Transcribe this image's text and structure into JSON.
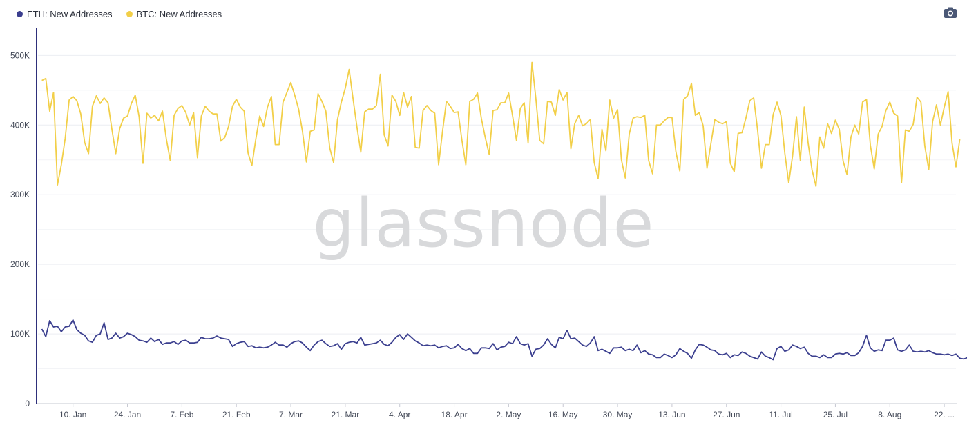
{
  "legend": [
    {
      "label": "ETH: New Addresses",
      "color": "#3b3f8f"
    },
    {
      "label": "BTC: New Addresses",
      "color": "#f2cf48"
    }
  ],
  "toolbar": {
    "camera_icon": "camera-icon"
  },
  "watermark": "glassnode",
  "chart_data": {
    "type": "line",
    "ylim": [
      0,
      540000
    ],
    "yticks": [
      0,
      100000,
      200000,
      300000,
      400000,
      500000
    ],
    "ytick_labels": [
      "0",
      "100K",
      "200K",
      "300K",
      "400K",
      "500K"
    ],
    "grid": true,
    "legend_position": "top-left",
    "xticks": [
      {
        "day": 8,
        "label": "10. Jan"
      },
      {
        "day": 22,
        "label": "24. Jan"
      },
      {
        "day": 36,
        "label": "7. Feb"
      },
      {
        "day": 50,
        "label": "21. Feb"
      },
      {
        "day": 64,
        "label": "7. Mar"
      },
      {
        "day": 78,
        "label": "21. Mar"
      },
      {
        "day": 92,
        "label": "4. Apr"
      },
      {
        "day": 106,
        "label": "18. Apr"
      },
      {
        "day": 120,
        "label": "2. May"
      },
      {
        "day": 134,
        "label": "16. May"
      },
      {
        "day": 148,
        "label": "30. May"
      },
      {
        "day": 162,
        "label": "13. Jun"
      },
      {
        "day": 176,
        "label": "27. Jun"
      },
      {
        "day": 190,
        "label": "11. Jul"
      },
      {
        "day": 204,
        "label": "25. Jul"
      },
      {
        "day": 218,
        "label": "8. Aug"
      },
      {
        "day": 232,
        "label": "22. ..."
      }
    ],
    "x_range": [
      -1,
      235
    ],
    "series": [
      {
        "name": "BTC: New Addresses",
        "color": "#f2cf48",
        "values": [
          464000,
          467000,
          420000,
          447000,
          314000,
          343000,
          381000,
          436000,
          441000,
          435000,
          416000,
          375000,
          359000,
          427000,
          442000,
          431000,
          439000,
          432000,
          394000,
          359000,
          395000,
          410000,
          413000,
          431000,
          443000,
          412000,
          345000,
          417000,
          410000,
          414000,
          406000,
          420000,
          380000,
          349000,
          414000,
          424000,
          428000,
          418000,
          400000,
          418000,
          353000,
          413000,
          427000,
          420000,
          416000,
          416000,
          377000,
          382000,
          398000,
          427000,
          437000,
          426000,
          420000,
          360000,
          342000,
          380000,
          413000,
          398000,
          426000,
          441000,
          372000,
          372000,
          433000,
          447000,
          461000,
          443000,
          423000,
          391000,
          347000,
          391000,
          393000,
          445000,
          434000,
          420000,
          367000,
          346000,
          408000,
          433000,
          453000,
          480000,
          438000,
          397000,
          361000,
          419000,
          423000,
          423000,
          428000,
          473000,
          386000,
          370000,
          443000,
          434000,
          414000,
          447000,
          426000,
          441000,
          368000,
          367000,
          421000,
          428000,
          421000,
          417000,
          343000,
          391000,
          434000,
          427000,
          418000,
          419000,
          378000,
          343000,
          434000,
          437000,
          446000,
          409000,
          382000,
          358000,
          421000,
          422000,
          432000,
          432000,
          446000,
          414000,
          378000,
          424000,
          432000,
          374000,
          490000,
          438000,
          378000,
          373000,
          434000,
          433000,
          414000,
          451000,
          436000,
          447000,
          366000,
          402000,
          414000,
          399000,
          402000,
          408000,
          346000,
          323000,
          394000,
          363000,
          436000,
          410000,
          422000,
          350000,
          324000,
          387000,
          410000,
          412000,
          411000,
          414000,
          349000,
          330000,
          400000,
          400000,
          406000,
          411000,
          411000,
          362000,
          334000,
          437000,
          442000,
          460000,
          414000,
          418000,
          399000,
          338000,
          373000,
          408000,
          404000,
          402000,
          405000,
          345000,
          333000,
          388000,
          389000,
          410000,
          435000,
          439000,
          393000,
          338000,
          372000,
          372000,
          415000,
          433000,
          414000,
          360000,
          317000,
          356000,
          412000,
          349000,
          426000,
          374000,
          336000,
          312000,
          383000,
          367000,
          402000,
          388000,
          407000,
          394000,
          348000,
          329000,
          383000,
          400000,
          387000,
          433000,
          437000,
          371000,
          337000,
          387000,
          398000,
          421000,
          433000,
          417000,
          413000,
          317000,
          393000,
          391000,
          401000,
          440000,
          433000,
          370000,
          336000,
          405000,
          429000,
          400000,
          426000,
          448000,
          374000,
          340000,
          380000
        ]
      },
      {
        "name": "ETH: New Addresses",
        "color": "#3b3f8f",
        "values": [
          107000,
          96000,
          119000,
          110000,
          111000,
          103000,
          110000,
          111000,
          120000,
          106000,
          101000,
          98000,
          90000,
          88000,
          98000,
          100000,
          116000,
          92000,
          94000,
          101000,
          94000,
          96000,
          101000,
          99000,
          96000,
          91000,
          90000,
          88000,
          94000,
          89000,
          92000,
          85000,
          87000,
          87000,
          89000,
          85000,
          90000,
          91000,
          87000,
          87000,
          88000,
          95000,
          93000,
          93000,
          94000,
          97000,
          94000,
          93000,
          92000,
          82000,
          86000,
          88000,
          89000,
          82000,
          83000,
          80000,
          81000,
          80000,
          81000,
          84000,
          88000,
          84000,
          84000,
          81000,
          86000,
          89000,
          90000,
          87000,
          81000,
          76000,
          84000,
          89000,
          91000,
          86000,
          82000,
          83000,
          86000,
          78000,
          86000,
          88000,
          89000,
          87000,
          95000,
          84000,
          85000,
          86000,
          87000,
          91000,
          85000,
          83000,
          88000,
          95000,
          99000,
          92000,
          100000,
          95000,
          90000,
          87000,
          83000,
          84000,
          83000,
          84000,
          80000,
          82000,
          83000,
          79000,
          80000,
          85000,
          79000,
          76000,
          79000,
          72000,
          72000,
          80000,
          80000,
          79000,
          86000,
          77000,
          81000,
          82000,
          88000,
          86000,
          96000,
          86000,
          84000,
          86000,
          68000,
          78000,
          79000,
          84000,
          93000,
          85000,
          80000,
          95000,
          93000,
          105000,
          93000,
          94000,
          89000,
          84000,
          82000,
          87000,
          96000,
          76000,
          78000,
          75000,
          72000,
          80000,
          80000,
          81000,
          76000,
          78000,
          76000,
          84000,
          73000,
          76000,
          71000,
          70000,
          66000,
          66000,
          71000,
          69000,
          66000,
          70000,
          79000,
          75000,
          72000,
          65000,
          77000,
          85000,
          84000,
          81000,
          77000,
          76000,
          71000,
          70000,
          72000,
          66000,
          70000,
          69000,
          74000,
          72000,
          68000,
          66000,
          64000,
          74000,
          68000,
          66000,
          63000,
          79000,
          82000,
          75000,
          77000,
          84000,
          82000,
          79000,
          81000,
          72000,
          68000,
          68000,
          66000,
          70000,
          66000,
          66000,
          71000,
          72000,
          71000,
          73000,
          69000,
          69000,
          73000,
          82000,
          98000,
          80000,
          75000,
          77000,
          76000,
          91000,
          91000,
          94000,
          77000,
          75000,
          77000,
          84000,
          75000,
          74000,
          75000,
          74000,
          76000,
          73000,
          71000,
          71000,
          70000,
          71000,
          69000,
          71000,
          65000,
          64000,
          66000
        ]
      }
    ]
  }
}
